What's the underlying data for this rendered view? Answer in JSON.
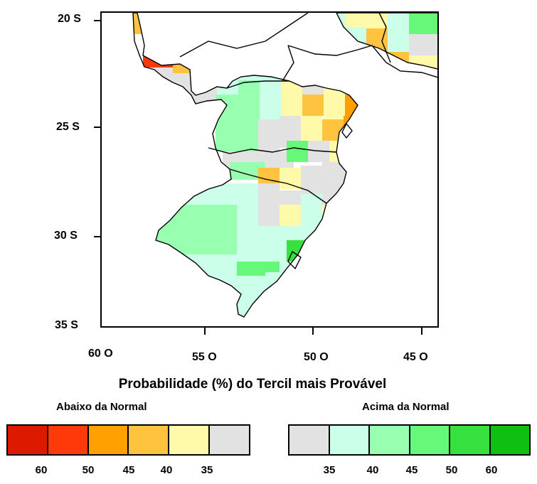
{
  "map": {
    "lat_labels": [
      "20 S",
      "25 S",
      "30 S",
      "35 S"
    ],
    "lon_labels": [
      "60 O",
      "55 O",
      "50 O",
      "45 O"
    ],
    "colors": {
      "below_60": "#dd1a00",
      "below_50": "#ff3a0a",
      "below_45": "#ffa000",
      "below_40": "#ffc340",
      "below_35": "#fffaaa",
      "normal": "#e2e2e2",
      "above_35": "#cbffea",
      "above_40": "#98ffb0",
      "above_45": "#66f878",
      "above_50": "#36e03e",
      "above_60": "#10c010"
    }
  },
  "legend": {
    "title": "Probabilidade  (%) do Tercil mais Provável",
    "below_heading": "Abaixo da Normal",
    "above_heading": "Acima da Normal",
    "below_values": [
      "60",
      "50",
      "45",
      "40",
      "35"
    ],
    "above_values": [
      "35",
      "40",
      "45",
      "50",
      "60"
    ]
  }
}
